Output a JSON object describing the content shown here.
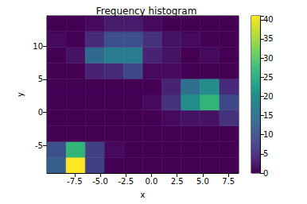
{
  "chart_data": {
    "type": "histogram2d",
    "title": "Frequency histogram",
    "x_label": "x",
    "y_label": "y",
    "x_bins": [
      -10.2,
      -8.33,
      -6.46,
      -4.59,
      -2.72,
      -0.85,
      1.02,
      2.89,
      4.76,
      6.63,
      8.5
    ],
    "y_bins": [
      -9.2,
      -6.82,
      -4.44,
      -2.06,
      0.32,
      2.7,
      5.08,
      7.46,
      9.84,
      12.22,
      14.6
    ],
    "counts": [
      [
        12,
        41,
        8,
        0,
        0,
        0,
        0,
        0,
        0,
        0
      ],
      [
        10,
        27,
        8,
        1,
        0,
        0,
        0,
        0,
        0,
        0
      ],
      [
        0,
        0,
        0,
        0,
        0,
        0,
        0,
        0,
        0,
        0
      ],
      [
        0,
        0,
        0,
        0,
        0,
        0,
        1,
        2,
        2,
        6
      ],
      [
        0,
        0,
        0,
        0,
        0,
        1,
        6,
        20,
        27,
        9
      ],
      [
        0,
        0,
        0,
        0,
        0,
        0,
        4,
        15,
        20,
        5
      ],
      [
        0,
        0,
        4,
        5,
        9,
        1,
        1,
        0,
        0,
        0
      ],
      [
        0,
        2,
        14,
        17,
        17,
        4,
        2,
        0,
        1,
        0
      ],
      [
        1,
        0,
        5,
        10,
        10,
        6,
        2,
        1,
        0,
        0
      ],
      [
        0,
        0,
        1,
        3,
        3,
        1,
        0,
        0,
        0,
        0
      ]
    ],
    "xlim": [
      -10.2,
      8.5
    ],
    "ylim": [
      -9.2,
      14.6
    ],
    "xticks": [
      {
        "value": -7.5,
        "label": "-7.5"
      },
      {
        "value": -5,
        "label": "-5.0"
      },
      {
        "value": -2.5,
        "label": "-2.5"
      },
      {
        "value": 0,
        "label": "0.0"
      },
      {
        "value": 2.5,
        "label": "2.5"
      },
      {
        "value": 5,
        "label": "5.0"
      },
      {
        "value": 7.5,
        "label": "7.5"
      }
    ],
    "yticks": [
      -5,
      0,
      5,
      10
    ],
    "color": "viridis",
    "colorbar": {
      "range": [
        0,
        41
      ],
      "ticks": [
        0,
        5,
        10,
        15,
        20,
        25,
        30,
        35,
        40
      ]
    }
  }
}
